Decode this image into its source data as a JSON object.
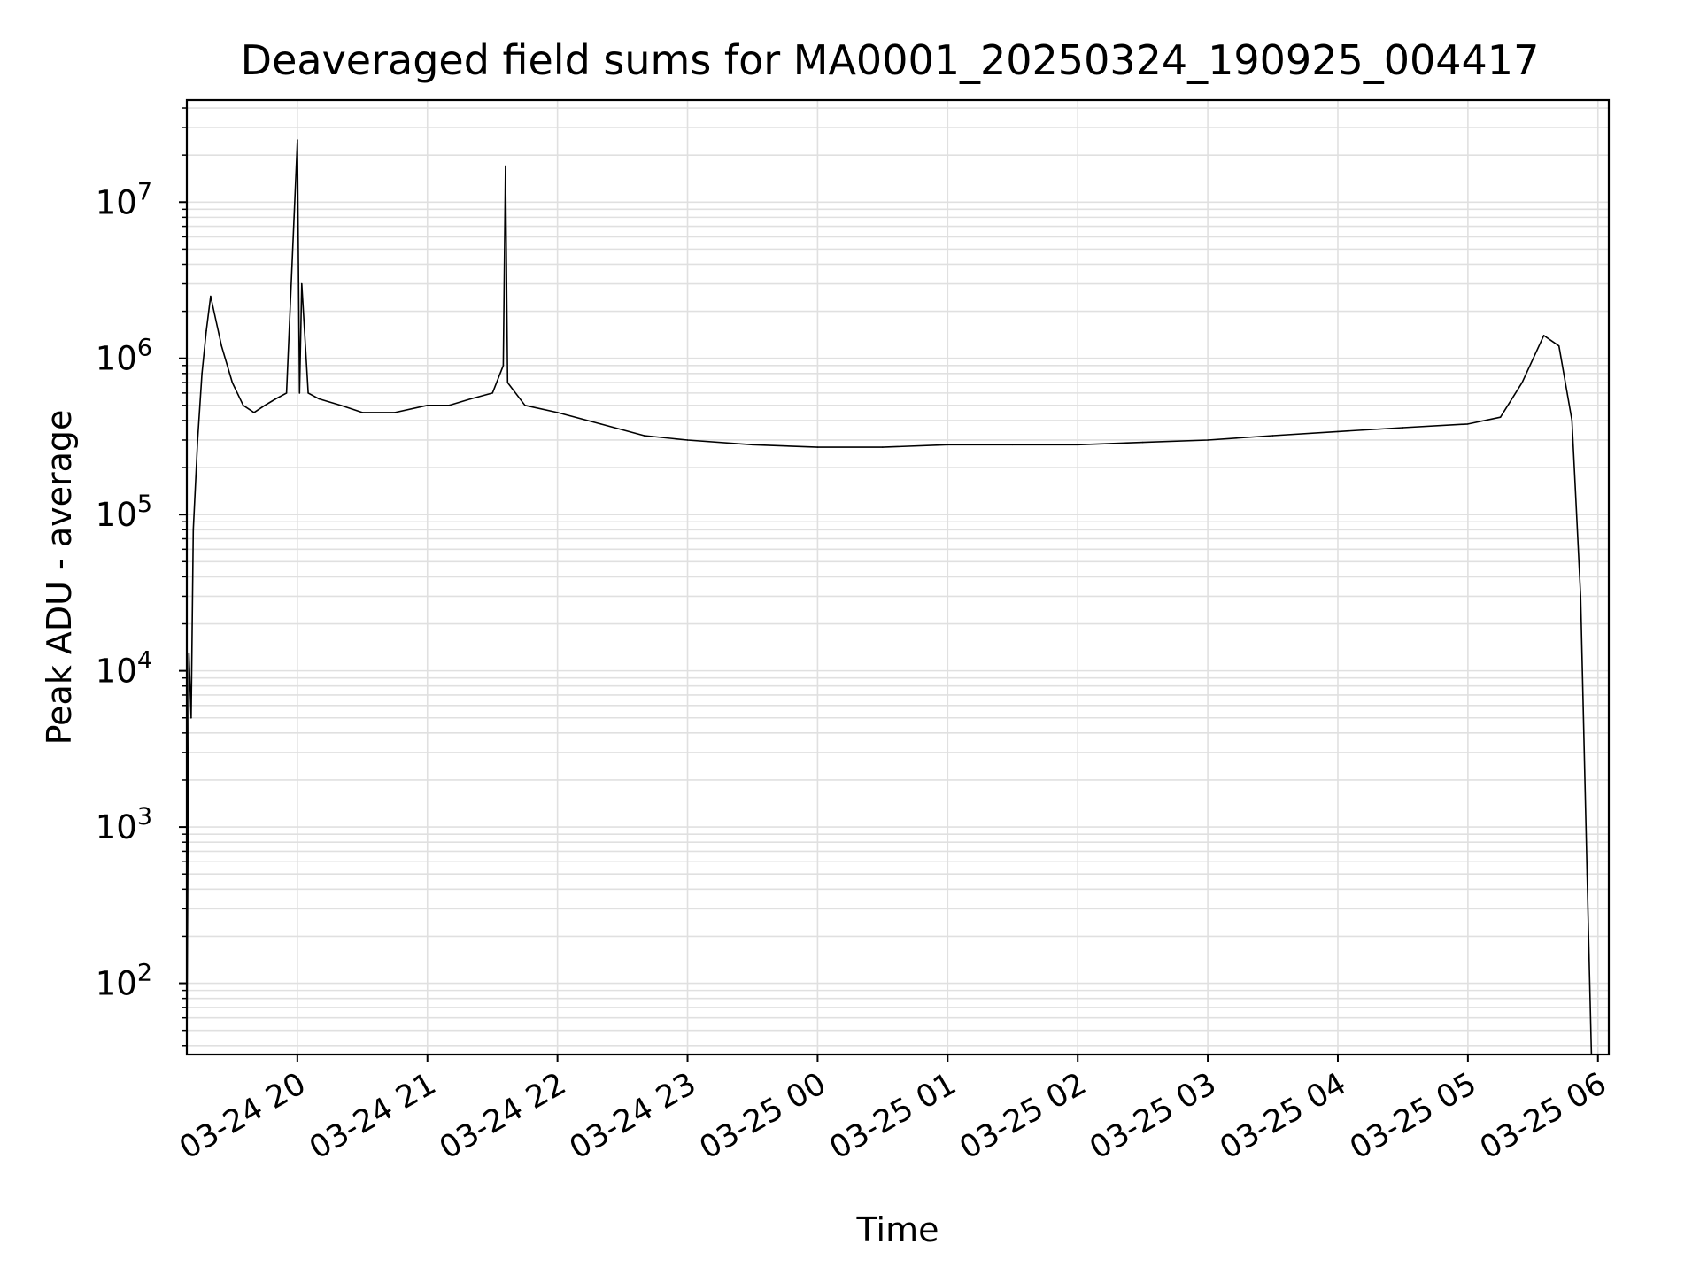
{
  "chart_data": {
    "type": "line",
    "title": "Deaveraged field sums for MA0001_20250324_190925_004417",
    "xlabel": "Time",
    "ylabel": "Peak ADU - average",
    "yscale": "log",
    "ylim": [
      35,
      45000000
    ],
    "xlim": [
      "2025-03-24 19:09",
      "2025-03-25 06:05"
    ],
    "grid": true,
    "line_color": "#000000",
    "grid_color": "#e0e0e0",
    "x_ticks": [
      "2025-03-24 20:00",
      "2025-03-24 21:00",
      "2025-03-24 22:00",
      "2025-03-24 23:00",
      "2025-03-25 00:00",
      "2025-03-25 01:00",
      "2025-03-25 02:00",
      "2025-03-25 03:00",
      "2025-03-25 04:00",
      "2025-03-25 05:00",
      "2025-03-25 06:00"
    ],
    "x_tick_labels": [
      "03-24 20",
      "03-24 21",
      "03-24 22",
      "03-24 23",
      "03-25 00",
      "03-25 01",
      "03-25 02",
      "03-25 03",
      "03-25 04",
      "03-25 05",
      "03-25 06"
    ],
    "y_ticks": [
      100,
      1000,
      10000,
      100000,
      1000000,
      10000000
    ],
    "y_tick_labels": [
      {
        "base": "10",
        "exp": "2"
      },
      {
        "base": "10",
        "exp": "3"
      },
      {
        "base": "10",
        "exp": "4"
      },
      {
        "base": "10",
        "exp": "5"
      },
      {
        "base": "10",
        "exp": "6"
      },
      {
        "base": "10",
        "exp": "7"
      }
    ],
    "series": [
      {
        "x": [
          "2025-03-24 19:09",
          "2025-03-24 19:10",
          "2025-03-24 19:11",
          "2025-03-24 19:12",
          "2025-03-24 19:14",
          "2025-03-24 19:16",
          "2025-03-24 19:18",
          "2025-03-24 19:20",
          "2025-03-24 19:25",
          "2025-03-24 19:30",
          "2025-03-24 19:35",
          "2025-03-24 19:40",
          "2025-03-24 19:45",
          "2025-03-24 19:50",
          "2025-03-24 19:55",
          "2025-03-24 20:00",
          "2025-03-24 20:01",
          "2025-03-24 20:02",
          "2025-03-24 20:05",
          "2025-03-24 20:10",
          "2025-03-24 20:20",
          "2025-03-24 20:30",
          "2025-03-24 20:45",
          "2025-03-24 21:00",
          "2025-03-24 21:10",
          "2025-03-24 21:20",
          "2025-03-24 21:30",
          "2025-03-24 21:35",
          "2025-03-24 21:36",
          "2025-03-24 21:37",
          "2025-03-24 21:45",
          "2025-03-24 22:00",
          "2025-03-24 22:20",
          "2025-03-24 22:40",
          "2025-03-24 23:00",
          "2025-03-24 23:30",
          "2025-03-25 00:00",
          "2025-03-25 00:30",
          "2025-03-25 01:00",
          "2025-03-25 01:30",
          "2025-03-25 02:00",
          "2025-03-25 02:30",
          "2025-03-25 03:00",
          "2025-03-25 03:30",
          "2025-03-25 04:00",
          "2025-03-25 04:30",
          "2025-03-25 05:00",
          "2025-03-25 05:15",
          "2025-03-25 05:25",
          "2025-03-25 05:35",
          "2025-03-25 05:42",
          "2025-03-25 05:48",
          "2025-03-25 05:52",
          "2025-03-25 05:55",
          "2025-03-25 05:57"
        ],
        "y": [
          35,
          13000,
          5000,
          80000,
          300000,
          800000,
          1500000,
          2500000,
          1200000,
          700000,
          500000,
          450000,
          500000,
          550000,
          600000,
          25000000,
          600000,
          3000000,
          600000,
          550000,
          500000,
          450000,
          450000,
          500000,
          500000,
          550000,
          600000,
          900000,
          17000000,
          700000,
          500000,
          450000,
          380000,
          320000,
          300000,
          280000,
          270000,
          270000,
          280000,
          280000,
          280000,
          290000,
          300000,
          320000,
          340000,
          360000,
          380000,
          420000,
          700000,
          1400000,
          1200000,
          400000,
          30000,
          500,
          35
        ]
      }
    ]
  }
}
